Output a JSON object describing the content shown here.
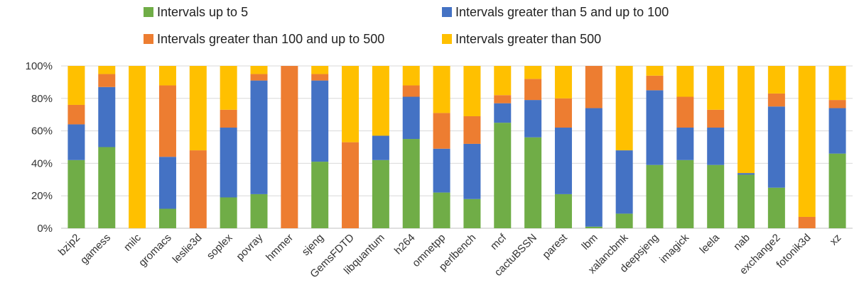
{
  "chart_data": {
    "type": "bar",
    "stacked": true,
    "percent": true,
    "categories": [
      "bzip2",
      "gamess",
      "milc",
      "gromacs",
      "leslie3d",
      "soplex",
      "povray",
      "hmmer",
      "sjeng",
      "GemsFDTD",
      "libquantum",
      "h264",
      "omnetpp",
      "perlbench",
      "mcf",
      "cactuBSSN",
      "parest",
      "lbm",
      "xalancbmk",
      "deepsjeng",
      "imagick",
      "leela",
      "nab",
      "exchange2",
      "fotonik3d",
      "xz"
    ],
    "series": [
      {
        "name": "Intervals up to 5",
        "color": "#70AD47",
        "values": [
          42,
          50,
          0,
          12,
          0,
          19,
          21,
          0,
          41,
          0,
          42,
          55,
          22,
          18,
          65,
          56,
          21,
          1,
          9,
          39,
          42,
          39,
          33,
          25,
          0,
          46
        ]
      },
      {
        "name": "Intervals greater than 5 and up to 100",
        "color": "#4472C4",
        "values": [
          22,
          37,
          0,
          32,
          0,
          43,
          70,
          0,
          50,
          0,
          15,
          26,
          27,
          34,
          12,
          23,
          41,
          73,
          39,
          46,
          20,
          23,
          1,
          50,
          0,
          28
        ]
      },
      {
        "name": "Intervals greater than 100 and up to 500",
        "color": "#ED7D31",
        "values": [
          12,
          8,
          0,
          44,
          48,
          11,
          4,
          100,
          4,
          53,
          0,
          7,
          22,
          17,
          5,
          13,
          18,
          26,
          0,
          9,
          19,
          11,
          0,
          8,
          7,
          5
        ]
      },
      {
        "name": "Intervals greater than 500",
        "color": "#FFC000",
        "values": [
          24,
          5,
          100,
          12,
          52,
          27,
          5,
          0,
          5,
          47,
          43,
          12,
          29,
          31,
          18,
          8,
          20,
          0,
          52,
          6,
          19,
          27,
          66,
          17,
          93,
          21
        ]
      }
    ],
    "yticks": [
      "0%",
      "20%",
      "40%",
      "60%",
      "80%",
      "100%"
    ],
    "ylim": [
      0,
      100
    ],
    "grid": true,
    "legend_position": "top"
  }
}
